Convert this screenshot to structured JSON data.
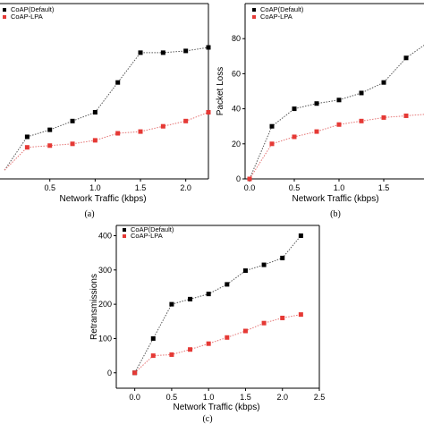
{
  "colors": {
    "default": "#000000",
    "lpa": "#e53935",
    "line_default": "#555555",
    "line_lpa": "#e57373"
  },
  "charts": [
    {
      "id": "a",
      "caption": "(a)",
      "xlabel": "Network Traffic (kbps)",
      "ylabel": "",
      "legend": [
        "CoAP(Default)",
        "CoAP-LPA"
      ]
    },
    {
      "id": "b",
      "caption": "(b)",
      "xlabel": "Network Traffic (kbps)",
      "ylabel": "Packet Loss",
      "legend": [
        "CoAP(Default)",
        "CoAP-LPA"
      ]
    },
    {
      "id": "c",
      "caption": "(c)",
      "xlabel": "Network Traffic (kbps)",
      "ylabel": "Retransmissions",
      "legend": [
        "CoAP(Default)",
        "CoAP-LPA"
      ]
    }
  ],
  "chart_data": [
    {
      "type": "line",
      "x": [
        0.0,
        0.25,
        0.5,
        0.75,
        1.0,
        1.25,
        1.5,
        1.75,
        2.0,
        2.25
      ],
      "xticks": [
        "0.5",
        "1.0",
        "1.5",
        "2.0"
      ],
      "xlim": [
        -0.05,
        2.25
      ],
      "ylim": [
        0,
        100
      ],
      "series": [
        {
          "name": "CoAP(Default)",
          "values": [
            5,
            24,
            28,
            33,
            38,
            55,
            72,
            72,
            73,
            75
          ]
        },
        {
          "name": "CoAP-LPA",
          "values": [
            5,
            18,
            19,
            20,
            22,
            26,
            27,
            30,
            33,
            38
          ]
        }
      ]
    },
    {
      "type": "line",
      "x": [
        0.0,
        0.25,
        0.5,
        0.75,
        1.0,
        1.25,
        1.5,
        1.75,
        2.0
      ],
      "xticks": [
        "0.0",
        "0.5",
        "1.0",
        "1.5"
      ],
      "yticks": [
        "0",
        "20",
        "40",
        "60",
        "80"
      ],
      "xlim": [
        -0.05,
        1.95
      ],
      "ylim": [
        0,
        100
      ],
      "series": [
        {
          "name": "CoAP(Default)",
          "values": [
            0,
            30,
            40,
            43,
            45,
            49,
            55,
            69,
            78
          ]
        },
        {
          "name": "CoAP-LPA",
          "values": [
            0,
            20,
            24,
            27,
            31,
            33,
            35,
            36,
            37
          ]
        }
      ]
    },
    {
      "type": "line",
      "x": [
        0.0,
        0.25,
        0.5,
        0.75,
        1.0,
        1.25,
        1.5,
        1.75,
        2.0,
        2.25
      ],
      "xticks": [
        "0.0",
        "0.5",
        "1.0",
        "1.5",
        "2.0",
        "2.5"
      ],
      "yticks": [
        "0",
        "100",
        "200",
        "300",
        "400"
      ],
      "xlim": [
        -0.25,
        2.5
      ],
      "ylim": [
        -45,
        430
      ],
      "series": [
        {
          "name": "CoAP(Default)",
          "values": [
            0,
            100,
            200,
            215,
            230,
            258,
            298,
            315,
            335,
            400
          ]
        },
        {
          "name": "CoAP-LPA",
          "values": [
            0,
            50,
            53,
            68,
            85,
            103,
            122,
            145,
            160,
            170
          ]
        }
      ]
    }
  ]
}
